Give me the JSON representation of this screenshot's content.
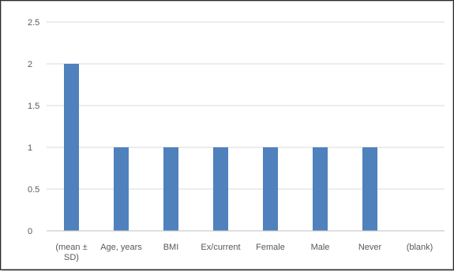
{
  "chart_data": {
    "type": "bar",
    "categories": [
      [
        "(mean ±",
        "SD)"
      ],
      [
        "Age, years"
      ],
      [
        "BMI"
      ],
      [
        "Ex/current"
      ],
      [
        "Female"
      ],
      [
        "Male"
      ],
      [
        "Never"
      ],
      [
        "(blank)"
      ]
    ],
    "values": [
      2,
      1,
      1,
      1,
      1,
      1,
      1,
      null
    ],
    "ylim": [
      0,
      2.5
    ],
    "yticks": [
      "0",
      "0.5",
      "1",
      "1.5",
      "2",
      "2.5"
    ],
    "grid": true,
    "bar_color": "#4f81bd",
    "grid_color": "#d9d9d9",
    "axis_color": "#bfbfbf",
    "label_color": "#595959"
  }
}
